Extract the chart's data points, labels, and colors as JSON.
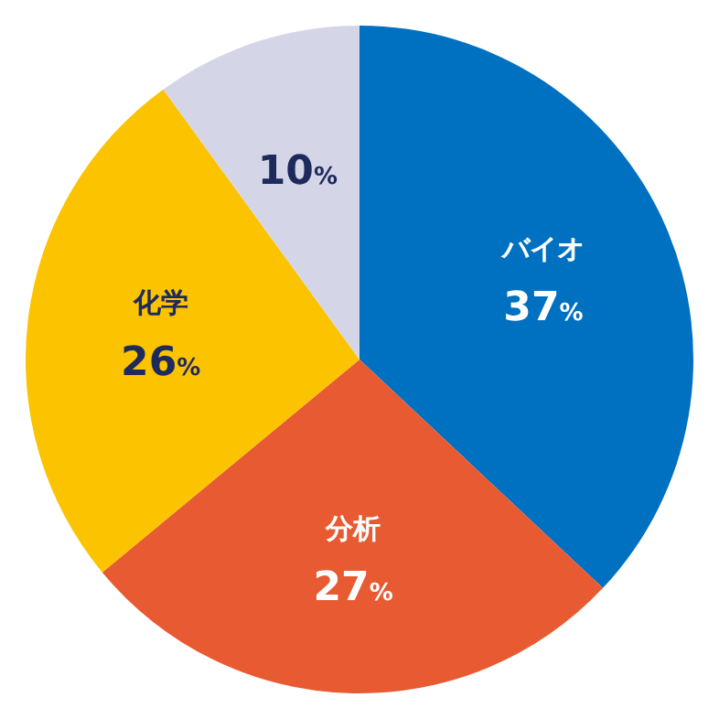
{
  "chart_data": {
    "type": "pie",
    "categories": [
      "バイオ",
      "分析",
      "化学",
      null
    ],
    "values": [
      37,
      27,
      26,
      10
    ],
    "colors": [
      "#0070c0",
      "#e85a32",
      "#fcc300",
      "#d4d6e8"
    ],
    "value_labels": [
      "37%",
      "27%",
      "26%",
      "10%"
    ]
  }
}
